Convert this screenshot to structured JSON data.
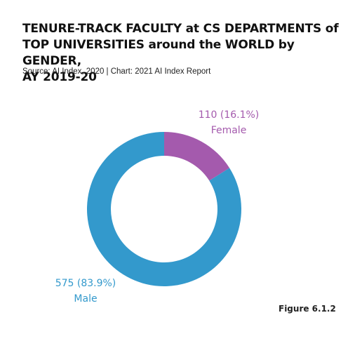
{
  "header": {
    "title": "TENURE-TRACK FACULTY at CS DEPARTMENTS of\nTOP UNIVERSITIES around the WORLD by GENDER,\nAY 2019-20",
    "source": "Source: AI Index, 2020 | Chart: 2021 AI Index Report"
  },
  "figure_label": "Figure 6.1.2",
  "chart_data": {
    "type": "pie",
    "title": "TENURE-TRACK FACULTY at CS DEPARTMENTS of TOP UNIVERSITIES around the WORLD by GENDER, AY 2019-20",
    "legend": "none",
    "slices": [
      {
        "name": "Female",
        "value": 110,
        "label": "110 (16.1%)",
        "color": "#a45aad"
      },
      {
        "name": "Male",
        "value": 575,
        "label": "575 (83.9%)",
        "color": "#3399cc"
      }
    ]
  }
}
